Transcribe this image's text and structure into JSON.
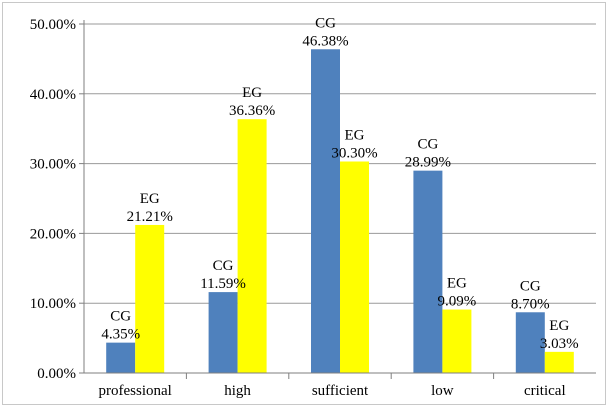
{
  "chart_data": {
    "type": "bar",
    "categories": [
      "professional",
      "high",
      "sufficient",
      "low",
      "critical"
    ],
    "series": [
      {
        "name": "CG",
        "color": "#4f81bd",
        "values": [
          4.35,
          11.59,
          46.38,
          28.99,
          8.7
        ],
        "labels": [
          "4.35%",
          "11.59%",
          "46.38%",
          "28.99%",
          "8.70%"
        ]
      },
      {
        "name": "EG",
        "color": "#ffff00",
        "values": [
          21.21,
          36.36,
          30.3,
          9.09,
          3.03
        ],
        "labels": [
          "21.21%",
          "36.36%",
          "30.30%",
          "9.09%",
          "3.03%"
        ]
      }
    ],
    "yticks": [
      "0.00%",
      "10.00%",
      "20.00%",
      "30.00%",
      "40.00%",
      "50.00%"
    ],
    "ylim": [
      0,
      50
    ],
    "grid": true,
    "legend": "none",
    "title": "",
    "xlabel": "",
    "ylabel": ""
  }
}
